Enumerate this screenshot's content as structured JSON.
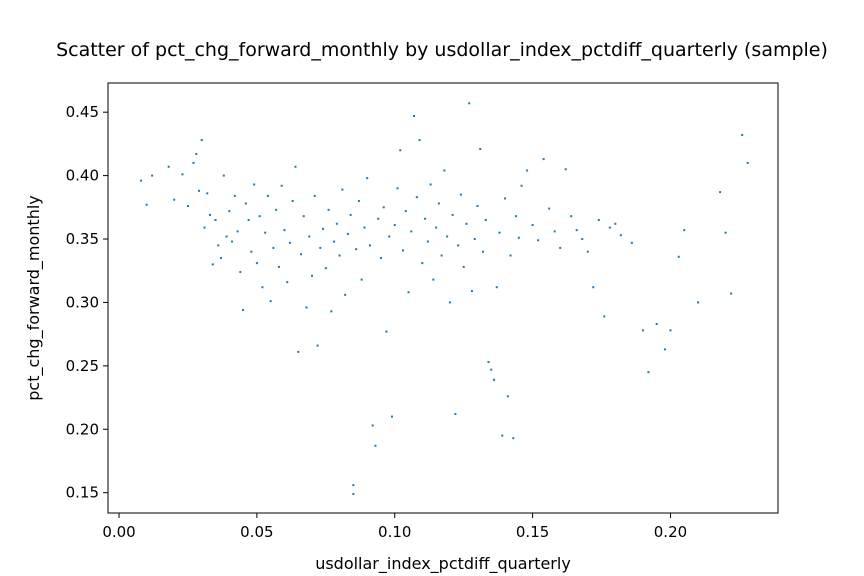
{
  "chart_data": {
    "type": "scatter",
    "title": "Scatter of pct_chg_forward_monthly by usdollar_index_pctdiff_quarterly (sample)",
    "xlabel": "usdollar_index_pctdiff_quarterly",
    "ylabel": "pct_chg_forward_monthly",
    "xlim": [
      -0.004,
      0.239
    ],
    "ylim": [
      0.134,
      0.473
    ],
    "xticks": [
      0.0,
      0.05,
      0.1,
      0.15,
      0.2
    ],
    "xtick_labels": [
      "0.00",
      "0.05",
      "0.10",
      "0.15",
      "0.20"
    ],
    "yticks": [
      0.15,
      0.2,
      0.25,
      0.3,
      0.35,
      0.4,
      0.45
    ],
    "ytick_labels": [
      "0.15",
      "0.20",
      "0.25",
      "0.30",
      "0.35",
      "0.40",
      "0.45"
    ],
    "grid": false,
    "marker_color": "#1f77b4",
    "points": [
      [
        0.008,
        0.396
      ],
      [
        0.01,
        0.377
      ],
      [
        0.012,
        0.4
      ],
      [
        0.018,
        0.407
      ],
      [
        0.02,
        0.381
      ],
      [
        0.023,
        0.401
      ],
      [
        0.025,
        0.376
      ],
      [
        0.027,
        0.41
      ],
      [
        0.028,
        0.417
      ],
      [
        0.029,
        0.388
      ],
      [
        0.03,
        0.428
      ],
      [
        0.031,
        0.359
      ],
      [
        0.032,
        0.386
      ],
      [
        0.033,
        0.369
      ],
      [
        0.034,
        0.33
      ],
      [
        0.035,
        0.365
      ],
      [
        0.036,
        0.345
      ],
      [
        0.037,
        0.335
      ],
      [
        0.038,
        0.4
      ],
      [
        0.039,
        0.352
      ],
      [
        0.04,
        0.372
      ],
      [
        0.041,
        0.348
      ],
      [
        0.042,
        0.384
      ],
      [
        0.043,
        0.356
      ],
      [
        0.044,
        0.324
      ],
      [
        0.045,
        0.294
      ],
      [
        0.046,
        0.378
      ],
      [
        0.047,
        0.365
      ],
      [
        0.048,
        0.34
      ],
      [
        0.049,
        0.393
      ],
      [
        0.05,
        0.331
      ],
      [
        0.051,
        0.368
      ],
      [
        0.052,
        0.312
      ],
      [
        0.053,
        0.355
      ],
      [
        0.054,
        0.384
      ],
      [
        0.055,
        0.301
      ],
      [
        0.056,
        0.343
      ],
      [
        0.057,
        0.373
      ],
      [
        0.058,
        0.328
      ],
      [
        0.059,
        0.392
      ],
      [
        0.06,
        0.357
      ],
      [
        0.061,
        0.316
      ],
      [
        0.062,
        0.347
      ],
      [
        0.063,
        0.38
      ],
      [
        0.064,
        0.407
      ],
      [
        0.065,
        0.261
      ],
      [
        0.066,
        0.338
      ],
      [
        0.067,
        0.368
      ],
      [
        0.068,
        0.296
      ],
      [
        0.069,
        0.352
      ],
      [
        0.07,
        0.321
      ],
      [
        0.071,
        0.384
      ],
      [
        0.072,
        0.266
      ],
      [
        0.073,
        0.343
      ],
      [
        0.074,
        0.358
      ],
      [
        0.075,
        0.327
      ],
      [
        0.076,
        0.373
      ],
      [
        0.077,
        0.293
      ],
      [
        0.078,
        0.348
      ],
      [
        0.079,
        0.362
      ],
      [
        0.08,
        0.337
      ],
      [
        0.081,
        0.389
      ],
      [
        0.082,
        0.306
      ],
      [
        0.083,
        0.354
      ],
      [
        0.084,
        0.369
      ],
      [
        0.085,
        0.149
      ],
      [
        0.085,
        0.156
      ],
      [
        0.086,
        0.342
      ],
      [
        0.087,
        0.38
      ],
      [
        0.088,
        0.318
      ],
      [
        0.089,
        0.359
      ],
      [
        0.09,
        0.398
      ],
      [
        0.091,
        0.345
      ],
      [
        0.092,
        0.203
      ],
      [
        0.093,
        0.187
      ],
      [
        0.094,
        0.366
      ],
      [
        0.095,
        0.335
      ],
      [
        0.096,
        0.375
      ],
      [
        0.097,
        0.277
      ],
      [
        0.098,
        0.352
      ],
      [
        0.099,
        0.21
      ],
      [
        0.1,
        0.361
      ],
      [
        0.101,
        0.39
      ],
      [
        0.102,
        0.42
      ],
      [
        0.103,
        0.341
      ],
      [
        0.104,
        0.372
      ],
      [
        0.105,
        0.308
      ],
      [
        0.106,
        0.356
      ],
      [
        0.107,
        0.447
      ],
      [
        0.108,
        0.383
      ],
      [
        0.109,
        0.428
      ],
      [
        0.11,
        0.331
      ],
      [
        0.111,
        0.366
      ],
      [
        0.112,
        0.348
      ],
      [
        0.113,
        0.393
      ],
      [
        0.114,
        0.318
      ],
      [
        0.115,
        0.359
      ],
      [
        0.116,
        0.378
      ],
      [
        0.117,
        0.337
      ],
      [
        0.118,
        0.404
      ],
      [
        0.119,
        0.352
      ],
      [
        0.12,
        0.3
      ],
      [
        0.121,
        0.369
      ],
      [
        0.122,
        0.212
      ],
      [
        0.123,
        0.345
      ],
      [
        0.124,
        0.385
      ],
      [
        0.125,
        0.328
      ],
      [
        0.126,
        0.362
      ],
      [
        0.127,
        0.457
      ],
      [
        0.128,
        0.309
      ],
      [
        0.129,
        0.35
      ],
      [
        0.13,
        0.376
      ],
      [
        0.131,
        0.421
      ],
      [
        0.132,
        0.34
      ],
      [
        0.133,
        0.365
      ],
      [
        0.134,
        0.253
      ],
      [
        0.135,
        0.247
      ],
      [
        0.136,
        0.239
      ],
      [
        0.137,
        0.312
      ],
      [
        0.138,
        0.355
      ],
      [
        0.139,
        0.195
      ],
      [
        0.14,
        0.382
      ],
      [
        0.141,
        0.226
      ],
      [
        0.142,
        0.337
      ],
      [
        0.143,
        0.193
      ],
      [
        0.144,
        0.368
      ],
      [
        0.145,
        0.351
      ],
      [
        0.146,
        0.392
      ],
      [
        0.148,
        0.404
      ],
      [
        0.15,
        0.361
      ],
      [
        0.152,
        0.349
      ],
      [
        0.154,
        0.413
      ],
      [
        0.156,
        0.374
      ],
      [
        0.158,
        0.356
      ],
      [
        0.16,
        0.343
      ],
      [
        0.162,
        0.405
      ],
      [
        0.164,
        0.368
      ],
      [
        0.166,
        0.357
      ],
      [
        0.168,
        0.35
      ],
      [
        0.17,
        0.34
      ],
      [
        0.172,
        0.312
      ],
      [
        0.174,
        0.365
      ],
      [
        0.176,
        0.289
      ],
      [
        0.178,
        0.359
      ],
      [
        0.18,
        0.362
      ],
      [
        0.182,
        0.353
      ],
      [
        0.186,
        0.347
      ],
      [
        0.19,
        0.278
      ],
      [
        0.192,
        0.245
      ],
      [
        0.195,
        0.283
      ],
      [
        0.198,
        0.263
      ],
      [
        0.2,
        0.278
      ],
      [
        0.203,
        0.336
      ],
      [
        0.205,
        0.357
      ],
      [
        0.21,
        0.3
      ],
      [
        0.218,
        0.387
      ],
      [
        0.22,
        0.355
      ],
      [
        0.222,
        0.307
      ],
      [
        0.226,
        0.432
      ],
      [
        0.228,
        0.41
      ]
    ]
  }
}
